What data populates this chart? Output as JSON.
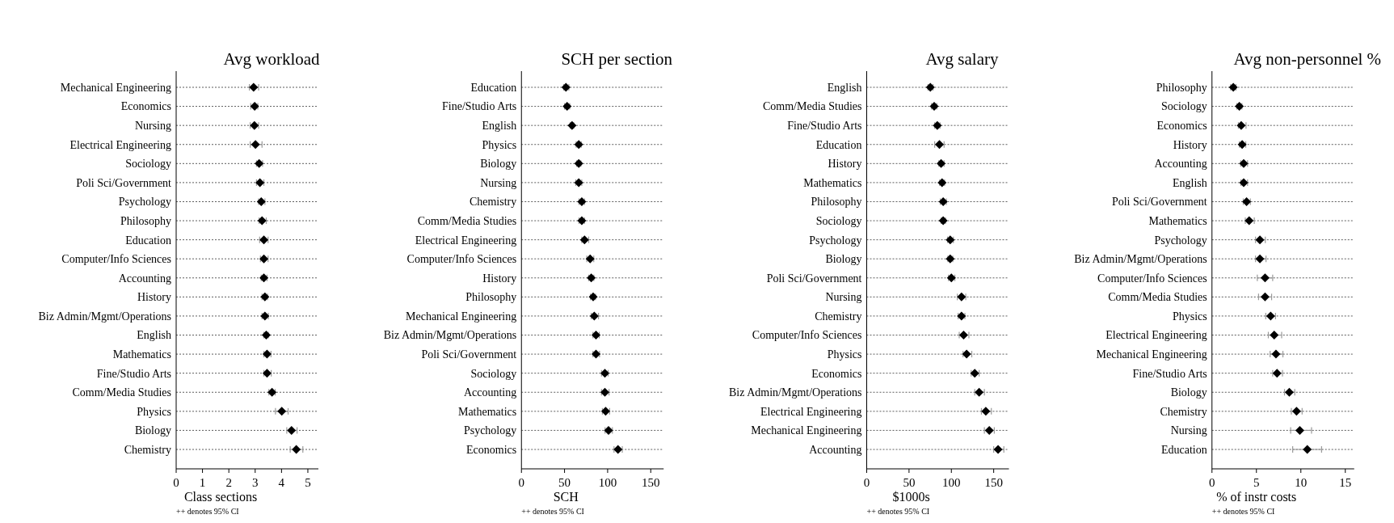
{
  "chart_data": [
    {
      "type": "scatter",
      "orientation": "horizontal",
      "title": "Avg workload",
      "xlabel": "Class sections",
      "annotations": [
        "++ denotes 95% CI"
      ],
      "marker": "diamond",
      "grid": "y",
      "color": "#000000",
      "categories": [
        "Mechanical Engineering",
        "Economics",
        "Nursing",
        "Electrical Engineering",
        "Sociology",
        "Poli Sci/Government",
        "Psychology",
        "Philosophy",
        "Education",
        "Computer/Info Sciences",
        "Accounting",
        "History",
        "Biz Admin/Mgmt/Operations",
        "English",
        "Mathematics",
        "Fine/Studio Arts",
        "Comm/Media Studies",
        "Physics",
        "Biology",
        "Chemistry"
      ],
      "values": [
        2.94,
        2.98,
        2.97,
        3.01,
        3.15,
        3.18,
        3.23,
        3.26,
        3.33,
        3.33,
        3.33,
        3.37,
        3.37,
        3.42,
        3.45,
        3.45,
        3.64,
        4.01,
        4.38,
        4.56
      ],
      "errors": [
        [
          2.78,
          3.13
        ],
        [
          2.83,
          3.1
        ],
        [
          2.81,
          3.13
        ],
        [
          2.81,
          3.26
        ],
        [
          3.05,
          3.28
        ],
        [
          3.05,
          3.33
        ],
        [
          3.13,
          3.37
        ],
        [
          3.15,
          3.42
        ],
        [
          3.17,
          3.49
        ],
        [
          3.2,
          3.49
        ],
        [
          3.23,
          3.45
        ],
        [
          3.26,
          3.47
        ],
        [
          3.26,
          3.5
        ],
        [
          3.33,
          3.5
        ],
        [
          3.33,
          3.6
        ],
        [
          3.33,
          3.61
        ],
        [
          3.52,
          3.76
        ],
        [
          3.77,
          4.25
        ],
        [
          4.2,
          4.59
        ],
        [
          4.33,
          4.81
        ]
      ],
      "xlim": [
        0,
        5.4
      ],
      "xticks": [
        0,
        1,
        2,
        3,
        4,
        5
      ]
    },
    {
      "type": "scatter",
      "orientation": "horizontal",
      "title": "SCH per section",
      "xlabel": "SCH",
      "annotations": [
        "++ denotes 95% CI"
      ],
      "marker": "diamond",
      "grid": "y",
      "color": "#000000",
      "categories": [
        "Education",
        "Fine/Studio Arts",
        "English",
        "Physics",
        "Biology",
        "Nursing",
        "Chemistry",
        "Comm/Media Studies",
        "Electrical Engineering",
        "Computer/Info Sciences",
        "History",
        "Philosophy",
        "Mechanical Engineering",
        "Biz Admin/Mgmt/Operations",
        "Poli Sci/Government",
        "Sociology",
        "Accounting",
        "Mathematics",
        "Psychology",
        "Economics"
      ],
      "values": [
        51.6,
        53,
        58.7,
        66.5,
        66.5,
        66.5,
        70,
        70,
        73.2,
        79.7,
        81,
        83.2,
        84.5,
        86.5,
        86.5,
        96.8,
        96.8,
        97.7,
        101,
        112
      ],
      "errors": [
        [
          49,
          55
        ],
        [
          50,
          56
        ],
        [
          56.5,
          60.6
        ],
        [
          63.5,
          69.4
        ],
        [
          64,
          69
        ],
        [
          63,
          70
        ],
        [
          66.8,
          73.2
        ],
        [
          66.8,
          73.2
        ],
        [
          70,
          78
        ],
        [
          75.8,
          83.9
        ],
        [
          78,
          84
        ],
        [
          80,
          86
        ],
        [
          81,
          89.4
        ],
        [
          83,
          90.3
        ],
        [
          83,
          90.6
        ],
        [
          92.9,
          100.6
        ],
        [
          92.9,
          101.6
        ],
        [
          93.9,
          102.3
        ],
        [
          97,
          105.5
        ],
        [
          107.4,
          117
        ]
      ],
      "xlim": [
        0,
        165
      ],
      "xticks": [
        0,
        50,
        100,
        150
      ]
    },
    {
      "type": "scatter",
      "orientation": "horizontal",
      "title": "Avg salary",
      "xlabel": "$1000s",
      "annotations": [
        "++ denotes 95% CI"
      ],
      "marker": "diamond",
      "grid": "y",
      "color": "#000000",
      "categories": [
        "English",
        "Comm/Media Studies",
        "Fine/Studio Arts",
        "Education",
        "History",
        "Mathematics",
        "Philosophy",
        "Sociology",
        "Psychology",
        "Biology",
        "Poli Sci/Government",
        "Nursing",
        "Chemistry",
        "Computer/Info Sciences",
        "Physics",
        "Economics",
        "Biz Admin/Mgmt/Operations",
        "Electrical Engineering",
        "Mechanical Engineering",
        "Accounting"
      ],
      "values": [
        75.2,
        79.7,
        83.4,
        85.9,
        87.9,
        89,
        90.3,
        90.3,
        98.6,
        98.6,
        100,
        112,
        112,
        114.5,
        118,
        127.6,
        132.8,
        140.7,
        144.8,
        155.2
      ],
      "errors": [
        [
          72.4,
          78.3
        ],
        [
          76.6,
          82.8
        ],
        [
          80.3,
          86.6
        ],
        [
          80.3,
          91.4
        ],
        [
          85.2,
          91.4
        ],
        [
          86.2,
          92
        ],
        [
          86.9,
          94.1
        ],
        [
          87.9,
          93.1
        ],
        [
          95.5,
          102.4
        ],
        [
          95.9,
          101.7
        ],
        [
          96.6,
          104.1
        ],
        [
          107,
          117
        ],
        [
          108,
          116
        ],
        [
          109.3,
          120.7
        ],
        [
          113.8,
          124.1
        ],
        [
          123.4,
          132.8
        ],
        [
          127.6,
          139
        ],
        [
          135.5,
          147.2
        ],
        [
          139,
          150.7
        ],
        [
          150,
          162
        ]
      ],
      "xlim": [
        0,
        168
      ],
      "xticks": [
        0,
        50,
        100,
        150
      ]
    },
    {
      "type": "scatter",
      "orientation": "horizontal",
      "title": "Avg non-personnel %",
      "xlabel": "% of instr costs",
      "annotations": [
        "++ denotes 95% CI"
      ],
      "marker": "diamond",
      "grid": "y",
      "color": "#000000",
      "categories": [
        "Philosophy",
        "Sociology",
        "Economics",
        "History",
        "Accounting",
        "English",
        "Poli Sci/Government",
        "Mathematics",
        "Psychology",
        "Biz Admin/Mgmt/Operations",
        "Computer/Info Sciences",
        "Comm/Media Studies",
        "Physics",
        "Electrical Engineering",
        "Mechanical Engineering",
        "Fine/Studio Arts",
        "Biology",
        "Chemistry",
        "Nursing",
        "Education"
      ],
      "values": [
        2.4,
        3.08,
        3.29,
        3.4,
        3.57,
        3.57,
        3.89,
        4.18,
        5.39,
        5.39,
        5.97,
        5.97,
        6.6,
        7.0,
        7.2,
        7.32,
        8.7,
        9.51,
        9.88,
        10.72
      ],
      "errors": [
        [
          2.1,
          2.7
        ],
        [
          2.8,
          3.37
        ],
        [
          2.97,
          3.83
        ],
        [
          3.08,
          3.8
        ],
        [
          3.23,
          4.0
        ],
        [
          3.26,
          4.0
        ],
        [
          3.52,
          4.32
        ],
        [
          3.75,
          4.76
        ],
        [
          4.9,
          6.0
        ],
        [
          4.9,
          6.08
        ],
        [
          5.1,
          6.83
        ],
        [
          5.24,
          6.71
        ],
        [
          6.05,
          7.15
        ],
        [
          6.34,
          7.84
        ],
        [
          6.54,
          7.98
        ],
        [
          6.83,
          7.93
        ],
        [
          8.16,
          9.31
        ],
        [
          8.93,
          10.14
        ],
        [
          8.85,
          11.2
        ],
        [
          9.08,
          12.33
        ]
      ],
      "xlim": [
        0,
        16
      ],
      "xticks": [
        0,
        5,
        10,
        15
      ]
    }
  ]
}
